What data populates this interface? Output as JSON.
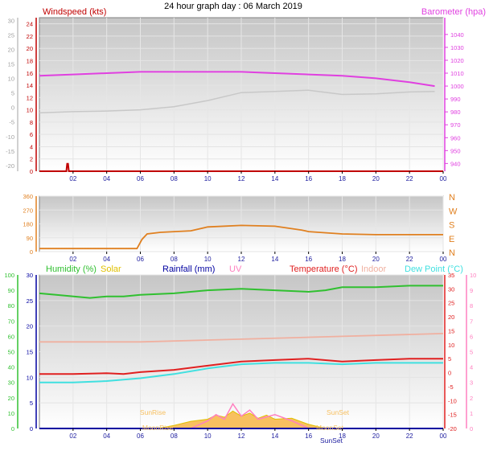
{
  "title": "24 hour graph day : 06 March 2019",
  "colors": {
    "bg_top": "#c8c8c8",
    "bg_bottom": "#ffffff",
    "wind": "#c00000",
    "baro": "#e040e0",
    "gust": "#c8c8c8",
    "dir": "#e08020",
    "humidity": "#30c030",
    "solar": "#e0c000",
    "rain": "#0000a0",
    "uv": "#ff80c0",
    "temp": "#e02020",
    "indoor": "#f0b0a0",
    "dew": "#40e0e0",
    "sun_fill": "#f8c060"
  },
  "chart_data": [
    {
      "type": "line",
      "x_ticks": [
        "02",
        "04",
        "06",
        "08",
        "10",
        "12",
        "14",
        "16",
        "18",
        "20",
        "22",
        "00"
      ],
      "left_axis": {
        "label": "Windspeed (kts)",
        "ticks": [
          0,
          2,
          4,
          6,
          8,
          10,
          12,
          14,
          16,
          18,
          20,
          22,
          24
        ],
        "ylim": [
          0,
          25
        ]
      },
      "outer_left_axis": {
        "ticks": [
          30,
          25,
          20,
          15,
          10,
          5,
          0,
          -5,
          -10,
          -15,
          -20
        ],
        "ylim": [
          -22,
          31
        ]
      },
      "right_axis": {
        "label": "Barometer (hpa)",
        "ticks": [
          1040,
          1030,
          1020,
          1010,
          1000,
          990,
          980,
          970,
          960,
          950,
          940
        ],
        "ylim": [
          934,
          1053
        ]
      },
      "series": [
        {
          "name": "Barometer (hpa)",
          "axis": "right",
          "x": [
            0,
            2,
            4,
            6,
            8,
            10,
            12,
            14,
            16,
            18,
            20,
            22,
            23.5
          ],
          "values": [
            1008,
            1009,
            1010,
            1011,
            1011,
            1011,
            1011,
            1010,
            1009,
            1008,
            1006,
            1003,
            1000
          ]
        },
        {
          "axis": "left",
          "x": [
            0,
            2,
            4,
            6,
            8,
            10,
            12,
            14,
            16,
            18,
            20,
            22,
            23.5
          ],
          "values": [
            9.5,
            9.7,
            9.8,
            10.0,
            10.5,
            11.5,
            12.8,
            13.0,
            13.2,
            12.5,
            12.6,
            12.9,
            13.0
          ]
        },
        {
          "axis": "left",
          "x": [
            0,
            1.6,
            1.65,
            1.7,
            1.75,
            24
          ],
          "values": [
            0,
            0,
            1.2,
            1.2,
            0,
            0
          ]
        }
      ]
    },
    {
      "type": "line",
      "x_ticks": [
        "02",
        "04",
        "06",
        "08",
        "10",
        "12",
        "14",
        "16",
        "18",
        "20",
        "22",
        "00"
      ],
      "left_axis": {
        "ticks": [
          360,
          270,
          180,
          90,
          0
        ],
        "ylim": [
          0,
          360
        ]
      },
      "right_axis": {
        "ticks": [
          "N",
          "W",
          "S",
          "E",
          "N"
        ]
      },
      "series": [
        {
          "x": [
            0,
            5.8,
            6.1,
            6.4,
            7.2,
            9,
            10,
            12,
            14,
            15.6,
            16,
            18,
            20,
            22,
            24
          ],
          "values": [
            20,
            20,
            80,
            115,
            125,
            135,
            160,
            170,
            165,
            140,
            130,
            115,
            110,
            110,
            110
          ]
        }
      ]
    },
    {
      "type": "line",
      "x_ticks": [
        "02",
        "04",
        "06",
        "08",
        "10",
        "12",
        "14",
        "16",
        "18",
        "20",
        "22",
        "00"
      ],
      "labels": [
        "Humidity (%)",
        "Solar",
        "Rainfall (mm)",
        "UV",
        "Temperature (°C)",
        "Indoor",
        "Dew Point (°C)"
      ],
      "humidity_axis": {
        "ticks": [
          100,
          90,
          80,
          70,
          60,
          50,
          40,
          30,
          20,
          10,
          0
        ],
        "ylim": [
          0,
          100
        ]
      },
      "rain_axis": {
        "ticks": [
          30,
          25,
          20,
          15,
          10,
          5,
          0
        ],
        "ylim": [
          0,
          30
        ]
      },
      "temp_axis": {
        "ticks": [
          35,
          30,
          25,
          20,
          15,
          10,
          5,
          0,
          -5,
          -10,
          -15,
          -20
        ],
        "ylim": [
          -20,
          35
        ]
      },
      "uv_axis": {
        "ticks": [
          10,
          9,
          8,
          7,
          6,
          5,
          4,
          3,
          2,
          1,
          0
        ],
        "ylim": [
          0,
          10
        ]
      },
      "annotations": [
        "SunRise",
        "SunSet",
        "MoonRise",
        "MoonSet",
        "SunSet"
      ],
      "series": [
        {
          "name": "Humidity (%)",
          "axis": "humidity",
          "x": [
            0,
            1,
            3,
            4,
            5,
            6,
            8,
            10,
            12,
            14,
            16,
            17,
            18,
            20,
            22,
            24
          ],
          "values": [
            88,
            87,
            85,
            86,
            86,
            87,
            88,
            90,
            91,
            90,
            89,
            90,
            92,
            92,
            93,
            93
          ]
        },
        {
          "name": "Indoor",
          "axis": "temp",
          "x": [
            0,
            6,
            12,
            18,
            24
          ],
          "values": [
            11,
            11,
            12,
            13,
            14
          ]
        },
        {
          "name": "Temperature (°C)",
          "axis": "temp",
          "x": [
            0,
            2,
            4,
            5,
            6,
            8,
            10,
            12,
            14,
            16,
            18,
            20,
            22,
            24
          ],
          "values": [
            -0.5,
            -0.5,
            -0.2,
            -0.5,
            0.2,
            1,
            2.5,
            4,
            4.5,
            5,
            4,
            4.5,
            5,
            5
          ]
        },
        {
          "name": "Dew Point (°C)",
          "axis": "temp",
          "x": [
            0,
            2,
            4,
            6,
            8,
            10,
            12,
            14,
            16,
            18,
            20,
            22,
            24
          ],
          "values": [
            -3.5,
            -3.5,
            -3,
            -2,
            -0.5,
            1.5,
            3,
            3.5,
            3.5,
            3,
            3.5,
            3.5,
            3.5
          ]
        },
        {
          "name": "Solar",
          "axis": "rain",
          "x": [
            7,
            8,
            9,
            10,
            10.5,
            11,
            11.5,
            12,
            12.5,
            13,
            13.5,
            14,
            15,
            16,
            17
          ],
          "values": [
            0,
            0.6,
            1.4,
            1.8,
            2.6,
            2.2,
            3.4,
            2.4,
            3.0,
            2.0,
            2.6,
            1.8,
            2.0,
            0.8,
            0
          ]
        },
        {
          "name": "UV",
          "axis": "uv",
          "x": [
            9,
            10,
            10.5,
            11,
            11.5,
            12,
            12.5,
            13,
            14,
            15,
            16
          ],
          "values": [
            0,
            0.5,
            0.9,
            0.6,
            1.6,
            0.8,
            1.2,
            0.6,
            0.9,
            0.5,
            0
          ]
        },
        {
          "name": "Rainfall (mm)",
          "axis": "rain",
          "x": [
            0,
            24
          ],
          "values": [
            0,
            0
          ]
        }
      ]
    }
  ]
}
